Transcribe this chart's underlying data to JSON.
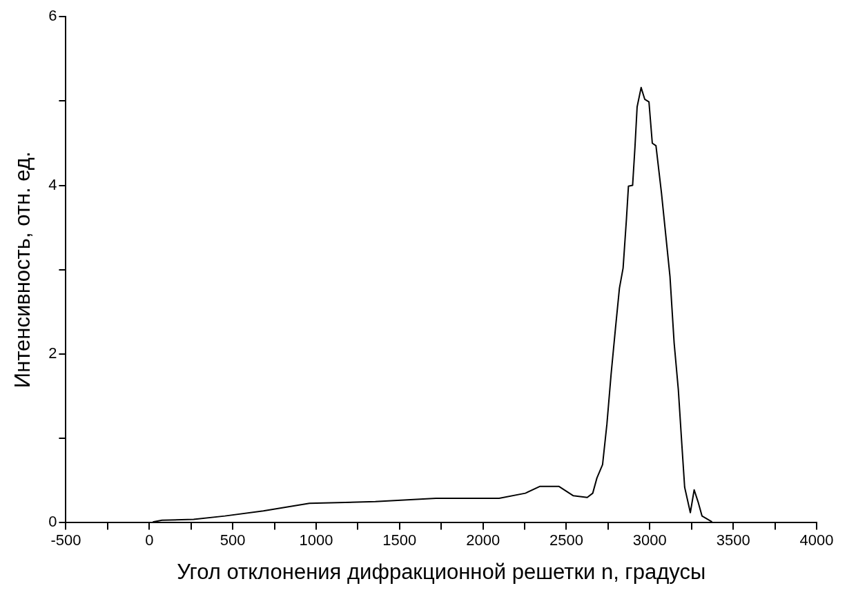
{
  "chart_data": {
    "type": "line",
    "xlabel": "Угол отклонения дифракционной решетки n, градусы",
    "ylabel": "Интенсивность, отн. ед.",
    "xlim": [
      -500,
      4000
    ],
    "xticks": [
      -500,
      {
        "value": -250,
        "label": null
      },
      0,
      {
        "value": 250,
        "label": null
      },
      500,
      {
        "value": 750,
        "label": null
      },
      1000,
      {
        "value": 1250,
        "label": null
      },
      1500,
      {
        "value": 1750,
        "label": null
      },
      2000,
      {
        "value": 2250,
        "label": null
      },
      2500,
      {
        "value": 2750,
        "label": null
      },
      3000,
      {
        "value": 3250,
        "label": null
      },
      3500,
      {
        "value": 3750,
        "label": null
      },
      4000
    ],
    "ylim": [
      0,
      6
    ],
    "yticks": [
      0,
      {
        "value": 1,
        "label": null
      },
      2,
      {
        "value": 3,
        "label": null
      },
      4,
      {
        "value": 5,
        "label": null
      },
      6
    ],
    "grid": false,
    "legend": false,
    "marker": "none",
    "line_style": "solid",
    "x": [
      21,
      76,
      266,
      453,
      684,
      960,
      1355,
      1718,
      2097,
      2254,
      2340,
      2406,
      2456,
      2542,
      2625,
      2658,
      2683,
      2717,
      2743,
      2768,
      2794,
      2818,
      2840,
      2860,
      2872,
      2897,
      2911,
      2924,
      2948,
      2970,
      2995,
      3015,
      3037,
      3070,
      3121,
      3146,
      3171,
      3193,
      3209,
      3243,
      3266,
      3289,
      3313,
      3373
    ],
    "series": [
      {
        "color": "#000000",
        "values": [
          0.01,
          0.03,
          0.04,
          0.08,
          0.14,
          0.23,
          0.25,
          0.29,
          0.29,
          0.35,
          0.43,
          0.43,
          0.43,
          0.32,
          0.3,
          0.35,
          0.53,
          0.69,
          1.17,
          1.76,
          2.3,
          2.78,
          3.02,
          3.6,
          3.99,
          4.0,
          4.45,
          4.93,
          5.16,
          5.02,
          4.99,
          4.5,
          4.47,
          3.91,
          2.92,
          2.13,
          1.58,
          0.9,
          0.42,
          0.12,
          0.39,
          0.25,
          0.08,
          0.01
        ]
      }
    ]
  }
}
